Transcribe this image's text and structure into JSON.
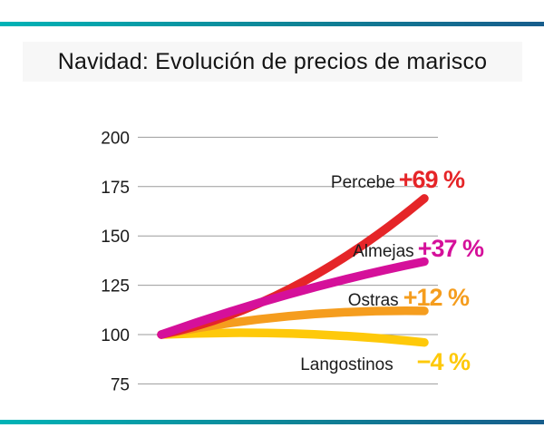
{
  "title": "Navidad: Evolución de precios de marisco",
  "accent_bar": {
    "color_left": "#00b3b6",
    "color_right": "#175d8c"
  },
  "chart_data": {
    "type": "line",
    "title": "Navidad: Evolución de precios de marisco",
    "xlabel": "",
    "ylabel": "",
    "x_axis": {
      "visible": false,
      "points": [
        0,
        0.5,
        1
      ]
    },
    "y_axis": {
      "ticks": [
        200,
        175,
        150,
        125,
        100,
        75
      ],
      "gridlines": true,
      "range": [
        75,
        200
      ],
      "base_index": 100
    },
    "grid_color": "#9b9b9b",
    "tick_label_color": "#1a1a1a",
    "legend_position": "inline-right",
    "series": [
      {
        "name": "Percebe",
        "change_label": "+69 %",
        "color": "#e52528",
        "values": [
          100,
          124,
          169
        ]
      },
      {
        "name": "Almejas",
        "change_label": "+37 %",
        "color": "#d5109a",
        "values": [
          100,
          121,
          137
        ]
      },
      {
        "name": "Ostras",
        "change_label": "+12 %",
        "color": "#f59d1e",
        "values": [
          100,
          109.5,
          112
        ]
      },
      {
        "name": "Langostinos",
        "change_label": "−4 %",
        "color": "#fec90a",
        "values": [
          100,
          100.5,
          96
        ]
      }
    ]
  }
}
